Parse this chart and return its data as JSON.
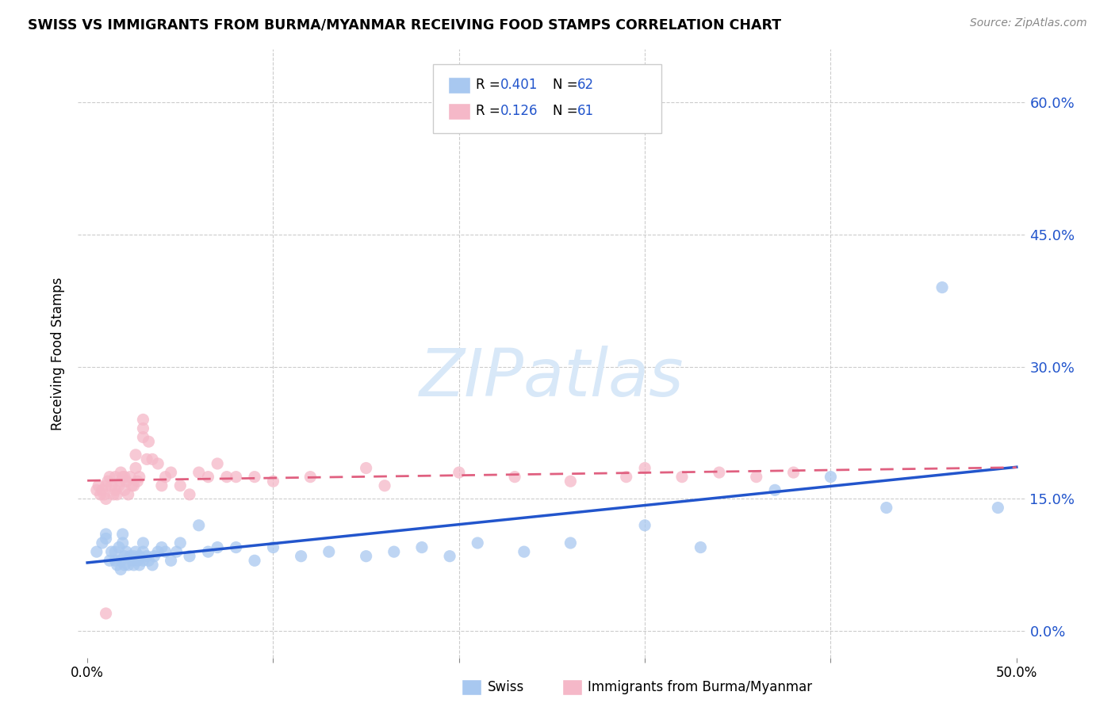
{
  "title": "SWISS VS IMMIGRANTS FROM BURMA/MYANMAR RECEIVING FOOD STAMPS CORRELATION CHART",
  "source": "Source: ZipAtlas.com",
  "ylabel": "Receiving Food Stamps",
  "ytick_labels": [
    "0.0%",
    "15.0%",
    "30.0%",
    "45.0%",
    "60.0%"
  ],
  "ytick_values": [
    0.0,
    0.15,
    0.3,
    0.45,
    0.6
  ],
  "xlim": [
    -0.005,
    0.505
  ],
  "ylim": [
    -0.03,
    0.66
  ],
  "legend_r_swiss": "R = 0.401",
  "legend_n_swiss": "N = 62",
  "legend_r_burma": "R = 0.126",
  "legend_n_burma": "N = 61",
  "swiss_color": "#a8c8f0",
  "burma_color": "#f5b8c8",
  "swiss_line_color": "#2255cc",
  "burma_line_color": "#e06080",
  "watermark_color": "#d8e8f8",
  "background_color": "#ffffff",
  "grid_color": "#cccccc",
  "swiss_x": [
    0.005,
    0.008,
    0.01,
    0.01,
    0.012,
    0.013,
    0.015,
    0.015,
    0.016,
    0.017,
    0.018,
    0.018,
    0.019,
    0.019,
    0.02,
    0.02,
    0.021,
    0.022,
    0.023,
    0.024,
    0.025,
    0.025,
    0.026,
    0.027,
    0.028,
    0.028,
    0.03,
    0.03,
    0.03,
    0.032,
    0.033,
    0.035,
    0.036,
    0.038,
    0.04,
    0.042,
    0.045,
    0.048,
    0.05,
    0.055,
    0.06,
    0.065,
    0.07,
    0.08,
    0.09,
    0.1,
    0.115,
    0.13,
    0.15,
    0.165,
    0.18,
    0.195,
    0.21,
    0.235,
    0.26,
    0.3,
    0.33,
    0.37,
    0.4,
    0.43,
    0.46,
    0.49
  ],
  "swiss_y": [
    0.09,
    0.1,
    0.105,
    0.11,
    0.08,
    0.09,
    0.08,
    0.09,
    0.075,
    0.095,
    0.07,
    0.08,
    0.1,
    0.11,
    0.075,
    0.085,
    0.09,
    0.075,
    0.085,
    0.08,
    0.075,
    0.085,
    0.09,
    0.08,
    0.075,
    0.085,
    0.08,
    0.09,
    0.1,
    0.085,
    0.08,
    0.075,
    0.085,
    0.09,
    0.095,
    0.09,
    0.08,
    0.09,
    0.1,
    0.085,
    0.12,
    0.09,
    0.095,
    0.095,
    0.08,
    0.095,
    0.085,
    0.09,
    0.085,
    0.09,
    0.095,
    0.085,
    0.1,
    0.09,
    0.1,
    0.12,
    0.095,
    0.16,
    0.175,
    0.14,
    0.39,
    0.14
  ],
  "burma_x": [
    0.005,
    0.006,
    0.007,
    0.008,
    0.009,
    0.01,
    0.01,
    0.011,
    0.012,
    0.013,
    0.014,
    0.015,
    0.015,
    0.016,
    0.017,
    0.018,
    0.018,
    0.019,
    0.02,
    0.02,
    0.021,
    0.022,
    0.023,
    0.024,
    0.025,
    0.026,
    0.026,
    0.027,
    0.028,
    0.03,
    0.03,
    0.03,
    0.032,
    0.033,
    0.035,
    0.038,
    0.04,
    0.042,
    0.045,
    0.05,
    0.055,
    0.06,
    0.065,
    0.07,
    0.075,
    0.08,
    0.09,
    0.1,
    0.12,
    0.15,
    0.16,
    0.2,
    0.23,
    0.26,
    0.29,
    0.3,
    0.32,
    0.34,
    0.36,
    0.38,
    0.01
  ],
  "burma_y": [
    0.16,
    0.165,
    0.155,
    0.16,
    0.155,
    0.15,
    0.165,
    0.17,
    0.175,
    0.165,
    0.155,
    0.16,
    0.175,
    0.155,
    0.165,
    0.17,
    0.18,
    0.175,
    0.16,
    0.175,
    0.17,
    0.155,
    0.175,
    0.165,
    0.165,
    0.185,
    0.2,
    0.17,
    0.175,
    0.22,
    0.23,
    0.24,
    0.195,
    0.215,
    0.195,
    0.19,
    0.165,
    0.175,
    0.18,
    0.165,
    0.155,
    0.18,
    0.175,
    0.19,
    0.175,
    0.175,
    0.175,
    0.17,
    0.175,
    0.185,
    0.165,
    0.18,
    0.175,
    0.17,
    0.175,
    0.185,
    0.175,
    0.18,
    0.175,
    0.18,
    0.02
  ]
}
